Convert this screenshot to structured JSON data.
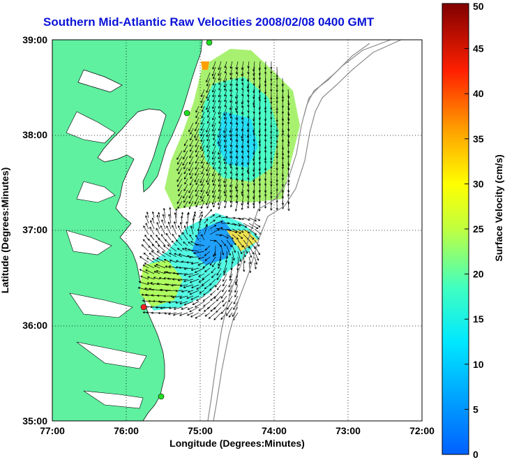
{
  "title": "Southern Mid-Atlantic Raw Velocities 2008/02/08 0400 GMT",
  "map": {
    "xlabel": "Longitude (Degrees:Minutes)",
    "ylabel": "Latitude (Degrees:Minutes)",
    "x_ticks": [
      "77:00",
      "76:00",
      "75:00",
      "74:00",
      "73:00",
      "72:00"
    ],
    "y_ticks": [
      "39:00",
      "38:00",
      "37:00",
      "36:00",
      "35:00"
    ],
    "land_color": "#5ff0a0",
    "water_color": "#ffffff",
    "bathymetry_color": "#8a8a8a",
    "station_colors": [
      "#22dd22",
      "#ff2020"
    ]
  },
  "colorbar": {
    "label": "Surface Velocity (cm/s)",
    "ticks": [
      "50",
      "45",
      "40",
      "35",
      "30",
      "25",
      "20",
      "15",
      "10",
      "5",
      "0"
    ],
    "min": 0,
    "max": 50
  }
}
